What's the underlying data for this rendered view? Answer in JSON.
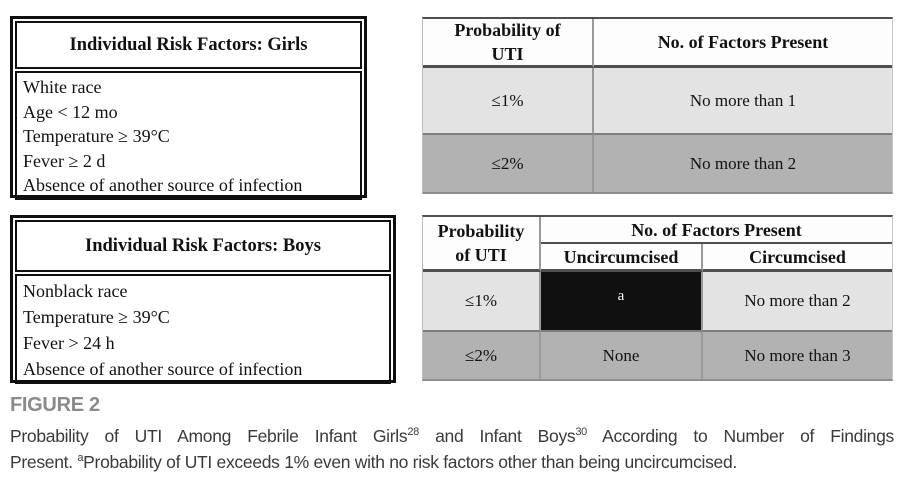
{
  "girls_panel": {
    "title": "Individual Risk Factors: Girls",
    "factors": [
      "White race",
      "Age < 12 mo",
      "Temperature ≥ 39°C",
      "Fever ≥ 2 d",
      "Absence of another source of infection"
    ]
  },
  "girls_table": {
    "col_probability_header": "Probability of UTI",
    "col_factors_header": "No. of Factors Present",
    "rows": [
      {
        "probability": "≤1%",
        "factors": "No more than 1"
      },
      {
        "probability": "≤2%",
        "factors": "No more than 2"
      }
    ]
  },
  "boys_panel": {
    "title": "Individual Risk Factors: Boys",
    "factors": [
      "Nonblack race",
      "Temperature ≥ 39°C",
      "Fever > 24 h",
      "Absence of another source of infection"
    ]
  },
  "boys_table": {
    "col_probability_header": "Probability of UTI",
    "group_header": "No. of Factors Present",
    "sub_headers": [
      "Uncircumcised",
      "Circumcised"
    ],
    "rows": [
      {
        "probability": "≤1%",
        "uncircumcised": "a",
        "circumcised": "No more than 2"
      },
      {
        "probability": "≤2%",
        "uncircumcised": "None",
        "circumcised": "No more than 3"
      }
    ]
  },
  "figure": {
    "label": "FIGURE 2",
    "caption_line1": {
      "t1": "Probability of UTI Among Febrile Infant Girls",
      "sup1": "28",
      "t2": " and Infant Boys",
      "sup2": "30",
      "t3": " According to Number of Findings"
    },
    "caption_line2": {
      "t1": "Present. ",
      "sup1": "a",
      "t2": "Probability of UTI exceeds 1% even with no risk factors other than being uncircumcised."
    }
  },
  "colors": {
    "row_light": "#e3e3e3",
    "row_dark": "#b2b2b2",
    "highlight_cell_bg": "#101010",
    "highlight_cell_text": "#ffffff",
    "box_border": "#0f0f0f",
    "figure_label": "#8a8a8a",
    "caption_text": "#3a3a3a"
  }
}
